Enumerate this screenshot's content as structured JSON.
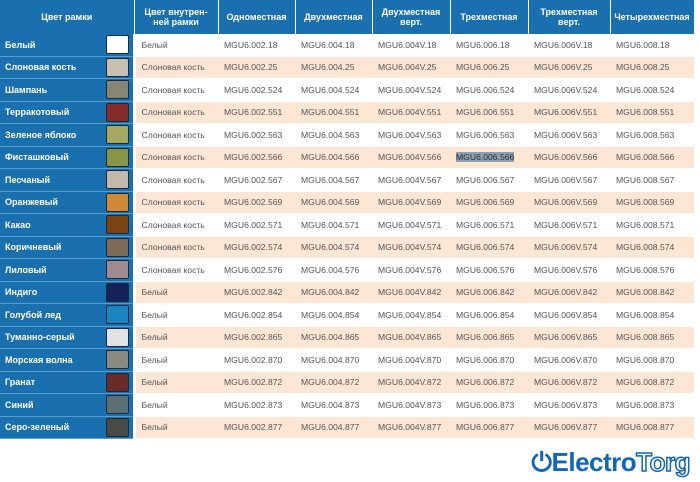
{
  "header": {
    "frame_color": "Цвет рамки",
    "inner_color": "Цвет внутрен-\nней рамки",
    "cols": [
      "Одноместная",
      "Двухместная",
      "Двухместная верт.",
      "Трехместная",
      "Трехместная верт.",
      "Четырехместная"
    ]
  },
  "rows": [
    {
      "name": "Белый",
      "swatch": "#ffffff",
      "inner": "Белый",
      "codes": [
        "MGU6.002.18",
        "MGU6.004.18",
        "MGU6.004V.18",
        "MGU6.006.18",
        "MGU6.006V.18",
        "MGU6.008.18"
      ]
    },
    {
      "name": "Слоновая кость",
      "swatch": "#c8c0ae",
      "inner": "Слоновая кость",
      "codes": [
        "MGU6.002.25",
        "MGU6.004.25",
        "MGU6.004V.25",
        "MGU6.006.25",
        "MGU6.006V.25",
        "MGU6.008.25"
      ]
    },
    {
      "name": "Шампань",
      "swatch": "#858673",
      "inner": "Слоновая кость",
      "codes": [
        "MGU6.002.524",
        "MGU6.004.524",
        "MGU6.004V.524",
        "MGU6.006.524",
        "MGU6.006V.524",
        "MGU6.008.524"
      ]
    },
    {
      "name": "Терракотовый",
      "swatch": "#852c2a",
      "inner": "Слоновая кость",
      "codes": [
        "MGU6.002.551",
        "MGU6.004.551",
        "MGU6.004V.551",
        "MGU6.006.551",
        "MGU6.006V.551",
        "MGU6.008.551"
      ]
    },
    {
      "name": "Зеленое яблоко",
      "swatch": "#a6a85e",
      "inner": "Слоновая кость",
      "codes": [
        "MGU6.002.563",
        "MGU6.004.563",
        "MGU6.004V.563",
        "MGU6.006.563",
        "MGU6.006V.563",
        "MGU6.008.563"
      ]
    },
    {
      "name": "Фисташковый",
      "swatch": "#879646",
      "inner": "Слоновая кость",
      "codes": [
        "MGU6.002.566",
        "MGU6.004.566",
        "MGU6.004V.566",
        "MGU6.006.566",
        "MGU6.006V.566",
        "MGU6.008.566"
      ],
      "selected": 3
    },
    {
      "name": "Песчаный",
      "swatch": "#c4b8a8",
      "inner": "Слоновая кость",
      "codes": [
        "MGU6.002.567",
        "MGU6.004.567",
        "MGU6.004V.567",
        "MGU6.006.567",
        "MGU6.006V.567",
        "MGU6.008.567"
      ]
    },
    {
      "name": "Оранжевый",
      "swatch": "#d08a34",
      "inner": "Слоновая кость",
      "codes": [
        "MGU6.002.569",
        "MGU6.004.569",
        "MGU6.004V.569",
        "MGU6.006.569",
        "MGU6.006V.569",
        "MGU6.008.569"
      ]
    },
    {
      "name": "Какао",
      "swatch": "#7c4210",
      "inner": "Слоновая кость",
      "codes": [
        "MGU6.002.571",
        "MGU6.004.571",
        "MGU6.004V.571",
        "MGU6.006.571",
        "MGU6.006V.571",
        "MGU6.008.571"
      ]
    },
    {
      "name": "Коричневый",
      "swatch": "#7e6a56",
      "inner": "Слоновая кость",
      "codes": [
        "MGU6.002.574",
        "MGU6.004.574",
        "MGU6.004V.574",
        "MGU6.006.574",
        "MGU6.006V.574",
        "MGU6.008.574"
      ]
    },
    {
      "name": "Лиловый",
      "swatch": "#a08a90",
      "inner": "Слоновая кость",
      "codes": [
        "MGU6.002.576",
        "MGU6.004.576",
        "MGU6.004V.576",
        "MGU6.006.576",
        "MGU6.006V.576",
        "MGU6.008.576"
      ]
    },
    {
      "name": "Индиго",
      "swatch": "#142258",
      "inner": "Белый",
      "codes": [
        "MGU6.002.842",
        "MGU6.004.842",
        "MGU6.004V.842",
        "MGU6.006.842",
        "MGU6.006V.842",
        "MGU6.008.842"
      ]
    },
    {
      "name": "Голубой лед",
      "swatch": "#1a86c0",
      "inner": "Белый",
      "codes": [
        "MGU6.002.854",
        "MGU6.004.854",
        "MGU6.004V.854",
        "MGU6.006.854",
        "MGU6.006V.854",
        "MGU6.008.854"
      ]
    },
    {
      "name": "Туманно-серый",
      "swatch": "#e2e2e4",
      "inner": "Белый",
      "codes": [
        "MGU6.002.865",
        "MGU6.004.865",
        "MGU6.004V.865",
        "MGU6.006.865",
        "MGU6.006V.865",
        "MGU6.008.865"
      ]
    },
    {
      "name": "Морская волна",
      "swatch": "#8a8a80",
      "inner": "Белый",
      "codes": [
        "MGU6.002.870",
        "MGU6.004.870",
        "MGU6.004V.870",
        "MGU6.006.870",
        "MGU6.006V.870",
        "MGU6.008.870"
      ]
    },
    {
      "name": "Гранат",
      "swatch": "#6a2a2a",
      "inner": "Белый",
      "codes": [
        "MGU6.002.872",
        "MGU6.004.872",
        "MGU6.004V.872",
        "MGU6.006.872",
        "MGU6.006V.872",
        "MGU6.008.872"
      ]
    },
    {
      "name": "Синий",
      "swatch": "#5a6e74",
      "inner": "Белый",
      "codes": [
        "MGU6.002.873",
        "MGU6.004.873",
        "MGU6.004V.873",
        "MGU6.006.873",
        "MGU6.006V.873",
        "MGU6.008.873"
      ]
    },
    {
      "name": "Серо-зеленый",
      "swatch": "#4a4a44",
      "inner": "Белый",
      "codes": [
        "MGU6.002.877",
        "MGU6.004.877",
        "MGU6.004V.877",
        "MGU6.006.877",
        "MGU6.006V.877",
        "MGU6.008.877"
      ]
    }
  ],
  "watermark": {
    "text_a": "Electro",
    "text_b": "Torg"
  },
  "colors": {
    "header": "#1a6fae",
    "alt_row": "#fde6d4"
  }
}
